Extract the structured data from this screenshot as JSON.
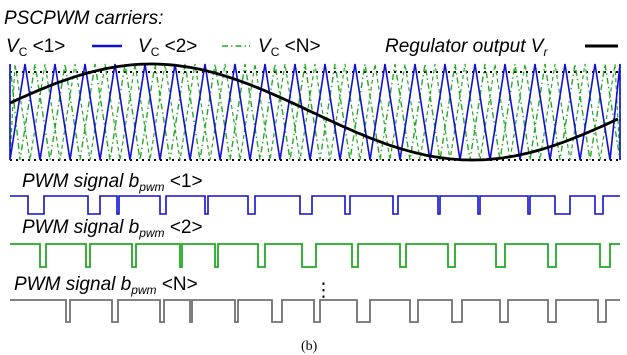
{
  "figure": {
    "title": "PSCPWM carriers:",
    "caption": "(b)",
    "continuation": "⋮"
  },
  "legend": {
    "carrier1": {
      "v": "V",
      "sub": "C",
      "rest": " <1>",
      "color": "#1010d0"
    },
    "carrier2": {
      "v": "V",
      "sub": "C",
      "rest": " <2>",
      "color": "#22aa22"
    },
    "carrierN": {
      "v": "V",
      "sub": "C",
      "rest": " <N>",
      "color": "#22aa22"
    },
    "regulator": {
      "text": "Regulator output V",
      "sub": "r",
      "color": "#000000"
    }
  },
  "signals": [
    {
      "prefix": "PWM signal b",
      "sub": "pwm",
      "suffix": " <1>",
      "color": "#1010d0"
    },
    {
      "prefix": "PWM signal b",
      "sub": "pwm",
      "suffix": " <2>",
      "color": "#22aa22"
    },
    {
      "prefix": "PWM signal b",
      "sub": "pwm",
      "suffix": " <N>",
      "color": "#707070"
    }
  ],
  "colors": {
    "carrier1": "#1010d0",
    "carrier2": "#22aa22",
    "pwmN": "#707070",
    "regulator": "#000000",
    "limits": "#000000"
  }
}
